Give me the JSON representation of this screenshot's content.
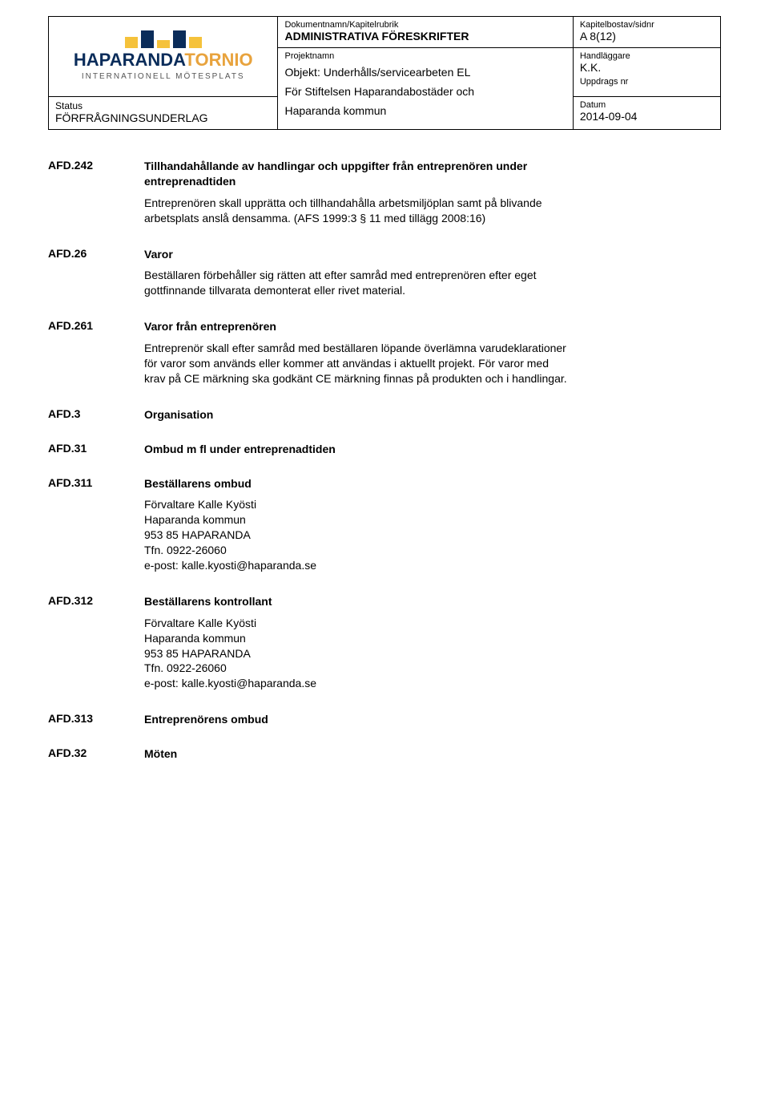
{
  "header": {
    "logo": {
      "bars": [
        {
          "h": 14,
          "c": "#f5c23b"
        },
        {
          "h": 22,
          "c": "#0a2c5a"
        },
        {
          "h": 10,
          "c": "#f5c23b"
        },
        {
          "h": 22,
          "c": "#0a2c5a"
        },
        {
          "h": 14,
          "c": "#f5c23b"
        }
      ],
      "name1": "HAPARANDA",
      "name2": "TORNIO",
      "sub": "INTERNATIONELL MÖTESPLATS"
    },
    "dokLabel": "Dokumentnamn/Kapitelrubrik",
    "dokValue": "ADMINISTRATIVA FÖRESKRIFTER",
    "kapLabel": "Kapitelbostav/sidnr",
    "kapValue": "A 8(12)",
    "projLabel": "Projektnamn",
    "projLine1": "Objekt: Underhålls/servicearbeten EL",
    "projLine2": "För Stiftelsen Haparandabostäder och",
    "projLine3": "Haparanda kommun",
    "handLabel": "Handläggare",
    "handValue": "K.K.",
    "uppdLabel": "Uppdrags nr",
    "statusLabel": "Status",
    "statusValue": "FÖRFRÅGNINGSUNDERLAG",
    "datumLabel": "Datum",
    "datumValue": "2014-09-04"
  },
  "sections": [
    {
      "code": "AFD.242",
      "title": "Tillhandahållande av handlingar och uppgifter från entreprenören under entreprenadtiden",
      "paras": [
        "Entreprenören skall upprätta och tillhandahålla arbetsmiljöplan samt på blivande arbetsplats anslå densamma. (AFS 1999:3 § 11 med tillägg 2008:16)"
      ]
    },
    {
      "code": "AFD.26",
      "title": "Varor",
      "paras": [
        "Beställaren förbehåller sig rätten att efter samråd med entreprenören efter eget gottfinnande tillvarata demonterat eller rivet material."
      ]
    },
    {
      "code": "AFD.261",
      "title": "Varor från entreprenören",
      "paras": [
        "Entreprenör skall efter samråd med beställaren löpande överlämna varudeklarationer för varor som används eller kommer att användas i aktuellt projekt. För varor med krav på CE märkning ska godkänt CE märkning finnas på produkten och i handlingar."
      ]
    },
    {
      "code": "AFD.3",
      "title": "Organisation",
      "paras": []
    },
    {
      "code": "AFD.31",
      "title": "Ombud m fl under entreprenadtiden",
      "paras": []
    },
    {
      "code": "AFD.311",
      "title": "Beställarens ombud",
      "paras": [
        "Förvaltare Kalle Kyösti\nHaparanda kommun\n953 85 HAPARANDA\nTfn. 0922-26060\ne-post: kalle.kyosti@haparanda.se"
      ]
    },
    {
      "code": "AFD.312",
      "title": "Beställarens kontrollant",
      "paras": [
        "Förvaltare Kalle Kyösti\nHaparanda kommun\n953 85 HAPARANDA\nTfn. 0922-26060\ne-post: kalle.kyosti@haparanda.se"
      ]
    },
    {
      "code": "AFD.313",
      "title": "Entreprenörens ombud",
      "paras": []
    },
    {
      "code": "AFD.32",
      "title": "Möten",
      "paras": []
    }
  ]
}
